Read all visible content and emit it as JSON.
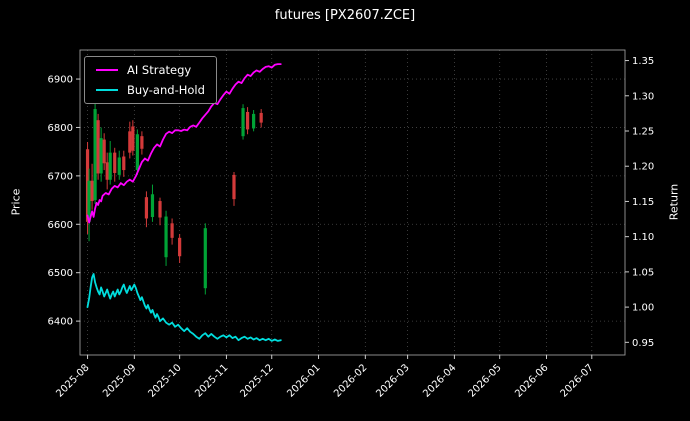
{
  "title": "futures [PX2607.ZCE]",
  "chart_data": {
    "type": "candlestick+line",
    "title": "futures [PX2607.ZCE]",
    "grid": {
      "color": "#4a4a4a",
      "style": "dotted"
    },
    "x_axis": {
      "tick_labels": [
        "2025-08",
        "2025-09",
        "2025-10",
        "2025-11",
        "2025-12",
        "2026-01",
        "2026-02",
        "2026-03",
        "2026-04",
        "2026-05",
        "2026-06",
        "2026-07"
      ],
      "tick_days": [
        0,
        31,
        61,
        92,
        122,
        153,
        184,
        212,
        243,
        273,
        304,
        334
      ],
      "range_days": [
        -5,
        356
      ]
    },
    "left_axis": {
      "label": "Price",
      "ticks": [
        6400,
        6500,
        6600,
        6700,
        6800,
        6900
      ],
      "range": [
        6330,
        6960
      ]
    },
    "right_axis": {
      "label": "Return",
      "ticks": [
        0.95,
        1.0,
        1.05,
        1.1,
        1.15,
        1.2,
        1.25,
        1.3,
        1.35
      ],
      "range": [
        0.932,
        1.365
      ]
    },
    "series": [
      {
        "name": "AI Strategy",
        "color": "#ff00ff",
        "axis": "right",
        "points": [
          [
            0,
            1.13
          ],
          [
            1,
            1.12
          ],
          [
            2,
            1.128
          ],
          [
            3,
            1.136
          ],
          [
            4,
            1.128
          ],
          [
            5,
            1.14
          ],
          [
            6,
            1.148
          ],
          [
            7,
            1.145
          ],
          [
            8,
            1.152
          ],
          [
            9,
            1.15
          ],
          [
            10,
            1.158
          ],
          [
            12,
            1.162
          ],
          [
            14,
            1.16
          ],
          [
            16,
            1.168
          ],
          [
            18,
            1.172
          ],
          [
            20,
            1.17
          ],
          [
            22,
            1.176
          ],
          [
            24,
            1.173
          ],
          [
            26,
            1.178
          ],
          [
            28,
            1.181
          ],
          [
            30,
            1.178
          ],
          [
            32,
            1.186
          ],
          [
            34,
            1.196
          ],
          [
            36,
            1.206
          ],
          [
            38,
            1.211
          ],
          [
            40,
            1.208
          ],
          [
            42,
            1.218
          ],
          [
            44,
            1.226
          ],
          [
            46,
            1.231
          ],
          [
            48,
            1.228
          ],
          [
            50,
            1.238
          ],
          [
            52,
            1.246
          ],
          [
            54,
            1.249
          ],
          [
            56,
            1.247
          ],
          [
            58,
            1.251
          ],
          [
            60,
            1.251
          ],
          [
            62,
            1.25
          ],
          [
            64,
            1.252
          ],
          [
            66,
            1.251
          ],
          [
            68,
            1.256
          ],
          [
            70,
            1.258
          ],
          [
            72,
            1.256
          ],
          [
            74,
            1.262
          ],
          [
            76,
            1.268
          ],
          [
            78,
            1.273
          ],
          [
            80,
            1.278
          ],
          [
            82,
            1.285
          ],
          [
            84,
            1.29
          ],
          [
            86,
            1.288
          ],
          [
            88,
            1.295
          ],
          [
            90,
            1.301
          ],
          [
            92,
            1.306
          ],
          [
            94,
            1.303
          ],
          [
            96,
            1.31
          ],
          [
            98,
            1.316
          ],
          [
            100,
            1.32
          ],
          [
            102,
            1.318
          ],
          [
            104,
            1.325
          ],
          [
            106,
            1.33
          ],
          [
            108,
            1.328
          ],
          [
            110,
            1.333
          ],
          [
            112,
            1.336
          ],
          [
            114,
            1.334
          ],
          [
            116,
            1.338
          ],
          [
            118,
            1.341
          ],
          [
            120,
            1.342
          ],
          [
            122,
            1.34
          ],
          [
            124,
            1.344
          ],
          [
            126,
            1.345
          ],
          [
            128,
            1.345
          ]
        ]
      },
      {
        "name": "Buy-and-Hold",
        "color": "#00dddd",
        "axis": "right",
        "points": [
          [
            0,
            1.0
          ],
          [
            1,
            1.012
          ],
          [
            2,
            1.028
          ],
          [
            3,
            1.042
          ],
          [
            4,
            1.047
          ],
          [
            5,
            1.035
          ],
          [
            6,
            1.028
          ],
          [
            7,
            1.022
          ],
          [
            8,
            1.018
          ],
          [
            9,
            1.028
          ],
          [
            10,
            1.022
          ],
          [
            11,
            1.015
          ],
          [
            12,
            1.02
          ],
          [
            13,
            1.025
          ],
          [
            14,
            1.018
          ],
          [
            15,
            1.012
          ],
          [
            16,
            1.018
          ],
          [
            17,
            1.022
          ],
          [
            18,
            1.015
          ],
          [
            19,
            1.02
          ],
          [
            20,
            1.025
          ],
          [
            21,
            1.018
          ],
          [
            22,
            1.022
          ],
          [
            23,
            1.028
          ],
          [
            24,
            1.032
          ],
          [
            25,
            1.025
          ],
          [
            26,
            1.02
          ],
          [
            27,
            1.025
          ],
          [
            28,
            1.03
          ],
          [
            29,
            1.024
          ],
          [
            30,
            1.028
          ],
          [
            31,
            1.032
          ],
          [
            32,
            1.027
          ],
          [
            33,
            1.02
          ],
          [
            34,
            1.015
          ],
          [
            35,
            1.01
          ],
          [
            36,
            1.014
          ],
          [
            37,
            1.008
          ],
          [
            38,
            1.002
          ],
          [
            39,
            0.998
          ],
          [
            40,
            1.003
          ],
          [
            41,
            0.997
          ],
          [
            42,
            0.992
          ],
          [
            43,
            0.996
          ],
          [
            44,
            0.99
          ],
          [
            45,
            0.985
          ],
          [
            46,
            0.99
          ],
          [
            47,
            0.986
          ],
          [
            48,
            0.98
          ],
          [
            50,
            0.984
          ],
          [
            52,
            0.978
          ],
          [
            54,
            0.975
          ],
          [
            56,
            0.978
          ],
          [
            58,
            0.972
          ],
          [
            60,
            0.975
          ],
          [
            62,
            0.97
          ],
          [
            64,
            0.966
          ],
          [
            66,
            0.97
          ],
          [
            68,
            0.965
          ],
          [
            70,
            0.962
          ],
          [
            72,
            0.958
          ],
          [
            74,
            0.955
          ],
          [
            76,
            0.96
          ],
          [
            78,
            0.963
          ],
          [
            80,
            0.958
          ],
          [
            82,
            0.962
          ],
          [
            84,
            0.958
          ],
          [
            86,
            0.955
          ],
          [
            88,
            0.958
          ],
          [
            90,
            0.96
          ],
          [
            92,
            0.957
          ],
          [
            94,
            0.96
          ],
          [
            96,
            0.956
          ],
          [
            98,
            0.958
          ],
          [
            100,
            0.953
          ],
          [
            102,
            0.956
          ],
          [
            104,
            0.958
          ],
          [
            106,
            0.955
          ],
          [
            108,
            0.957
          ],
          [
            110,
            0.954
          ],
          [
            112,
            0.956
          ],
          [
            114,
            0.953
          ],
          [
            116,
            0.955
          ],
          [
            118,
            0.953
          ],
          [
            120,
            0.955
          ],
          [
            122,
            0.952
          ],
          [
            124,
            0.954
          ],
          [
            126,
            0.952
          ],
          [
            128,
            0.953
          ]
        ]
      }
    ],
    "candles": {
      "up_color": "#00a336",
      "down_color": "#d43a3a",
      "ohlc": [
        [
          0,
          6755,
          6770,
          6580,
          6605
        ],
        [
          1,
          6605,
          6715,
          6565,
          6690
        ],
        [
          3,
          6690,
          6725,
          6630,
          6648
        ],
        [
          5,
          6650,
          6852,
          6642,
          6838
        ],
        [
          7,
          6815,
          6828,
          6692,
          6705
        ],
        [
          9,
          6705,
          6800,
          6688,
          6778
        ],
        [
          11,
          6775,
          6788,
          6712,
          6726
        ],
        [
          13,
          6728,
          6748,
          6672,
          6692
        ],
        [
          15,
          6692,
          6772,
          6682,
          6748
        ],
        [
          18,
          6748,
          6758,
          6688,
          6706
        ],
        [
          21,
          6702,
          6752,
          6692,
          6738
        ],
        [
          24,
          6740,
          6752,
          6698,
          6712
        ],
        [
          28,
          6792,
          6812,
          6736,
          6748
        ],
        [
          30,
          6802,
          6815,
          6742,
          6752
        ],
        [
          33,
          6712,
          6796,
          6702,
          6786
        ],
        [
          36,
          6782,
          6792,
          6744,
          6756
        ],
        [
          39,
          6656,
          6668,
          6594,
          6612
        ],
        [
          43,
          6615,
          6682,
          6605,
          6662
        ],
        [
          48,
          6648,
          6655,
          6598,
          6614
        ],
        [
          52,
          6532,
          6628,
          6514,
          6616
        ],
        [
          56,
          6602,
          6612,
          6558,
          6572
        ],
        [
          61,
          6572,
          6580,
          6520,
          6534
        ],
        [
          78,
          6468,
          6602,
          6455,
          6592
        ],
        [
          97,
          6702,
          6708,
          6638,
          6652
        ],
        [
          103,
          6782,
          6848,
          6775,
          6840
        ],
        [
          106,
          6832,
          6842,
          6786,
          6796
        ],
        [
          110,
          6798,
          6836,
          6792,
          6828
        ],
        [
          115,
          6830,
          6838,
          6800,
          6810
        ]
      ]
    }
  }
}
